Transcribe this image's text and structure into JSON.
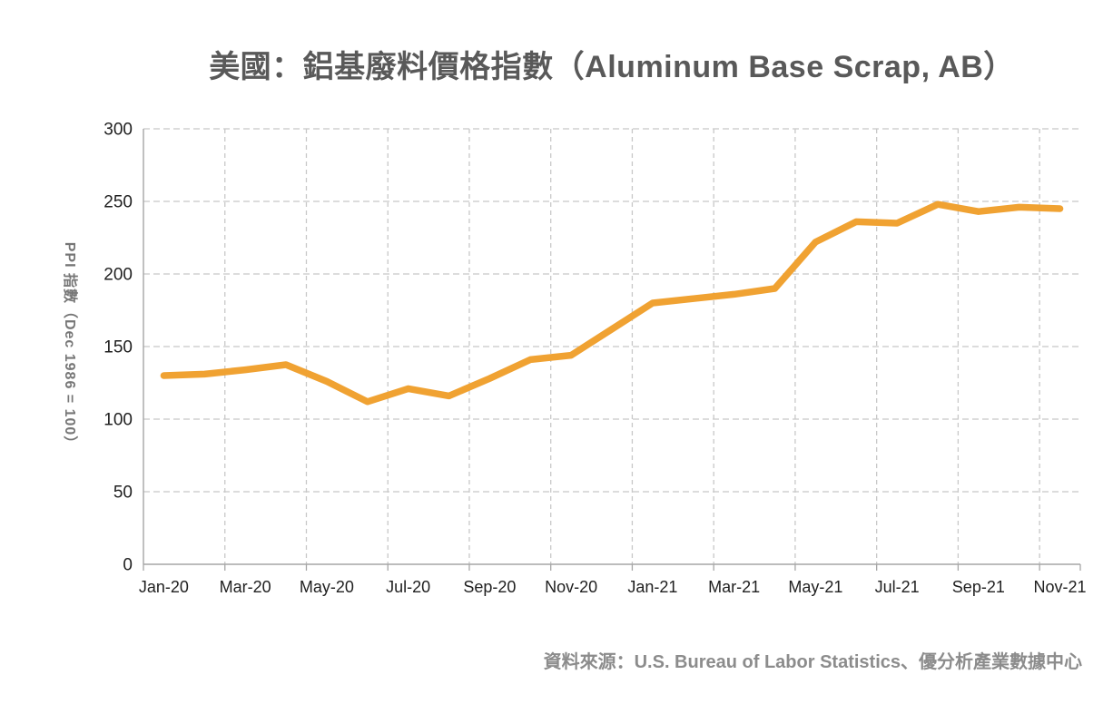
{
  "chart_data": {
    "type": "line",
    "title": "美國：鋁基廢料價格指數（Aluminum Base Scrap, AB）",
    "ylabel": "PPI 指數（Dec 1986 = 100）",
    "xlabel": "",
    "x": [
      "Jan-20",
      "Feb-20",
      "Mar-20",
      "Apr-20",
      "May-20",
      "Jun-20",
      "Jul-20",
      "Aug-20",
      "Sep-20",
      "Oct-20",
      "Nov-20",
      "Dec-20",
      "Jan-21",
      "Feb-21",
      "Mar-21",
      "Apr-21",
      "May-21",
      "Jun-21",
      "Jul-21",
      "Aug-21",
      "Sep-21",
      "Oct-21",
      "Nov-21"
    ],
    "values": [
      130,
      131,
      134,
      137.5,
      126,
      112,
      121,
      116,
      128,
      141,
      144,
      162,
      180,
      183,
      186,
      190,
      222,
      236,
      235,
      248,
      243,
      246,
      245
    ],
    "series_name": "PPI 指數",
    "ylim": [
      0,
      300
    ],
    "yticks": [
      0,
      50,
      100,
      150,
      200,
      250,
      300
    ],
    "xtick_labels": [
      "Jan-20",
      "Mar-20",
      "May-20",
      "Jul-20",
      "Sep-20",
      "Nov-20",
      "Jan-21",
      "Mar-21",
      "May-21",
      "Jul-21",
      "Sep-21",
      "Nov-21"
    ],
    "xtick_every": 2,
    "grid": "dashed",
    "legend": "none"
  },
  "source_note": "資料來源：U.S. Bureau of Labor Statistics、優分析產業數據中心",
  "colors": {
    "line": "#F0A232",
    "grid": "#C8C8C8",
    "axis": "#A6A6A6",
    "tick_label": "#1F1F1F",
    "title": "#595959",
    "axis_title": "#767676",
    "source": "#8C8C8C",
    "background": "#FFFFFF"
  }
}
